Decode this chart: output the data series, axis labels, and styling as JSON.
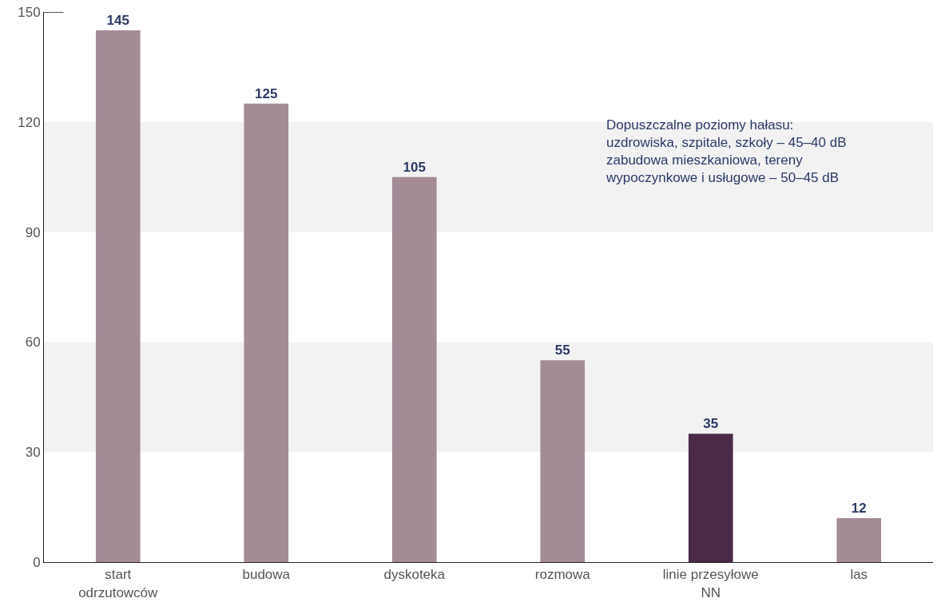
{
  "chart_data": {
    "type": "bar",
    "categories": [
      "start\nodrzutowców",
      "budowa",
      "dyskoteka",
      "rozmowa",
      "linie przesyłowe\nNN",
      "las"
    ],
    "values": [
      145,
      125,
      105,
      55,
      35,
      12
    ],
    "colors": [
      "#a48b96",
      "#a48b96",
      "#a48b96",
      "#a48b96",
      "#4a2a48",
      "#a48b96"
    ],
    "ylim": [
      0,
      150
    ],
    "yticks": [
      0,
      30,
      60,
      90,
      120,
      150
    ],
    "grid": false,
    "data_labels": true,
    "bands": [
      {
        "axis": "y",
        "from": 30,
        "to": 60,
        "color": "#f2f2f2"
      },
      {
        "axis": "y",
        "from": 90,
        "to": 120,
        "color": "#f2f2f2"
      }
    ],
    "annotations": [
      "Dopuszczalne poziomy hałasu:\nuzdrowiska, szpitale, szkoły – 45–40 dB\nzabudowa mieszkaniowa, tereny\nwypoczynkowe i usługowe – 50–45 dB"
    ]
  }
}
